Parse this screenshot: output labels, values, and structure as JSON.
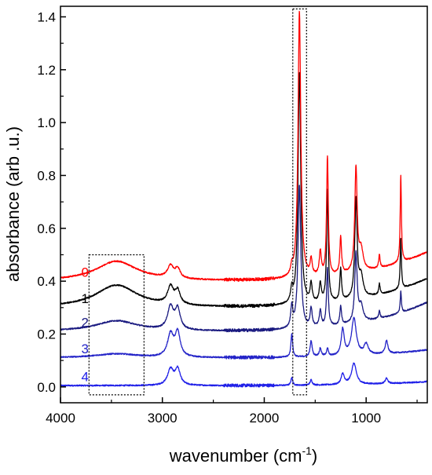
{
  "chart_data": {
    "type": "line",
    "xlabel": "wavenumber (cm",
    "xlabel_superscript": "-1",
    "xlabel_suffix": ")",
    "ylabel": "absorbance (arb .u.)",
    "xlim": [
      4000,
      400
    ],
    "ylim": [
      -0.06,
      1.44
    ],
    "x_reversed": true,
    "x_ticks": [
      4000,
      3000,
      2000,
      1000
    ],
    "x_tick_labels": [
      "4000",
      "3000",
      "2000",
      "1000"
    ],
    "y_ticks": [
      0.0,
      0.2,
      0.4,
      0.6,
      0.8,
      1.0,
      1.2,
      1.4
    ],
    "y_tick_labels": [
      "0.0",
      "0.2",
      "0.4",
      "0.6",
      "0.8",
      "1.0",
      "1.2",
      "1.4"
    ],
    "grid": false,
    "legend": "inline labels at left",
    "highlight_boxes": [
      {
        "x_range": [
          3720,
          3180
        ],
        "y_range": [
          -0.03,
          0.5
        ]
      },
      {
        "x_range": [
          1720,
          1585
        ],
        "y_range": [
          -0.03,
          1.43
        ]
      }
    ],
    "series": [
      {
        "name": "0",
        "color": "#ff0000",
        "baseline": 0.4,
        "end": 0.51,
        "peaks": [
          [
            3450,
            0.075,
            250
          ],
          [
            2920,
            0.045,
            35
          ],
          [
            2850,
            0.035,
            30
          ],
          [
            1730,
            0.03,
            12
          ],
          [
            1655,
            1.01,
            16
          ],
          [
            1540,
            0.06,
            12
          ],
          [
            1450,
            0.09,
            12
          ],
          [
            1380,
            0.45,
            10
          ],
          [
            1250,
            0.14,
            10
          ],
          [
            1100,
            0.39,
            14
          ],
          [
            1050,
            0.08,
            25
          ],
          [
            870,
            0.05,
            8
          ],
          [
            660,
            0.33,
            7
          ]
        ]
      },
      {
        "name": "1",
        "color": "#000000",
        "baseline": 0.3,
        "end": 0.41,
        "peaks": [
          [
            3450,
            0.085,
            250
          ],
          [
            2920,
            0.065,
            35
          ],
          [
            2850,
            0.05,
            30
          ],
          [
            1730,
            0.05,
            12
          ],
          [
            1655,
            0.88,
            16
          ],
          [
            1540,
            0.07,
            12
          ],
          [
            1450,
            0.07,
            12
          ],
          [
            1380,
            0.42,
            10
          ],
          [
            1250,
            0.12,
            10
          ],
          [
            1100,
            0.37,
            14
          ],
          [
            1050,
            0.08,
            25
          ],
          [
            870,
            0.04,
            8
          ],
          [
            660,
            0.19,
            7
          ]
        ]
      },
      {
        "name": "2",
        "color": "#1a1a80",
        "baseline": 0.21,
        "end": 0.32,
        "peaks": [
          [
            3450,
            0.04,
            250
          ],
          [
            2920,
            0.085,
            35
          ],
          [
            2850,
            0.075,
            30
          ],
          [
            1730,
            0.08,
            12
          ],
          [
            1655,
            0.54,
            16
          ],
          [
            1540,
            0.07,
            12
          ],
          [
            1450,
            0.06,
            12
          ],
          [
            1380,
            0.22,
            10
          ],
          [
            1250,
            0.07,
            10
          ],
          [
            1100,
            0.26,
            14
          ],
          [
            1050,
            0.06,
            25
          ],
          [
            870,
            0.03,
            8
          ],
          [
            660,
            0.08,
            7
          ]
        ]
      },
      {
        "name": "3",
        "color": "#2424c8",
        "baseline": 0.11,
        "end": 0.14,
        "peaks": [
          [
            3450,
            0.015,
            250
          ],
          [
            2920,
            0.085,
            35
          ],
          [
            2850,
            0.09,
            30
          ],
          [
            1730,
            0.09,
            10
          ],
          [
            1540,
            0.06,
            12
          ],
          [
            1450,
            0.03,
            12
          ],
          [
            1380,
            0.03,
            10
          ],
          [
            1230,
            0.1,
            18
          ],
          [
            1120,
            0.14,
            28
          ],
          [
            1000,
            0.04,
            25
          ],
          [
            800,
            0.05,
            15
          ]
        ]
      },
      {
        "name": "4",
        "color": "#2020e8",
        "baseline": 0.005,
        "end": 0.02,
        "peaks": [
          [
            2920,
            0.06,
            35
          ],
          [
            2850,
            0.06,
            30
          ],
          [
            1730,
            0.03,
            10
          ],
          [
            1540,
            0.02,
            12
          ],
          [
            1230,
            0.04,
            18
          ],
          [
            1120,
            0.08,
            28
          ],
          [
            800,
            0.02,
            15
          ]
        ]
      }
    ]
  }
}
